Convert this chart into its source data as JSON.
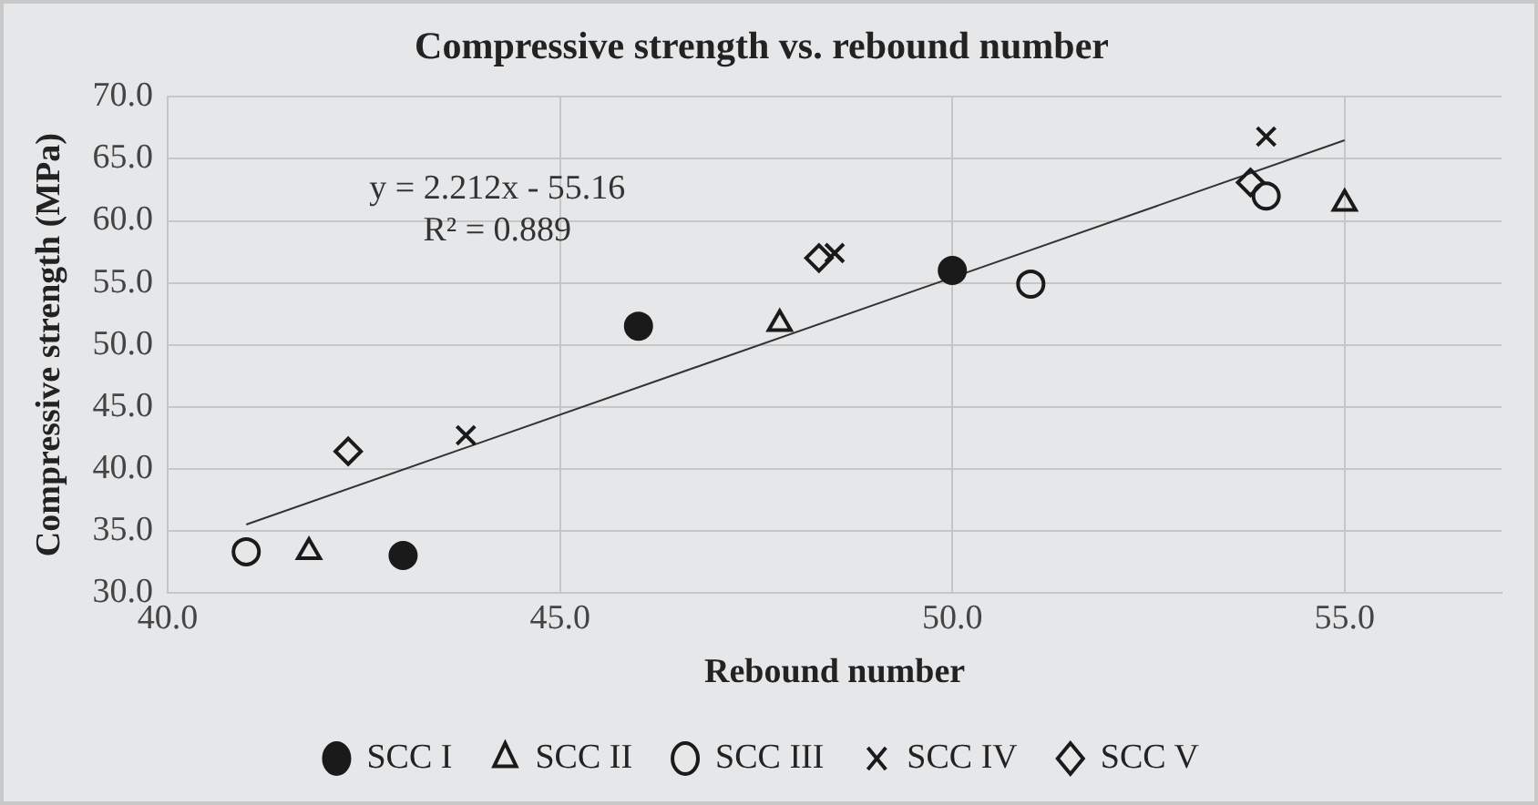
{
  "chart_data": {
    "type": "scatter",
    "title": "Compressive strength vs. rebound number",
    "xlabel": "Rebound number",
    "ylabel": "Compressive strength (MPa)",
    "xlim": [
      40,
      57
    ],
    "xticks": [
      {
        "value": 40,
        "label": "40.0"
      },
      {
        "value": 45,
        "label": "45.0"
      },
      {
        "value": 50,
        "label": "50.0"
      },
      {
        "value": 55,
        "label": "55.0"
      }
    ],
    "ylim": [
      30,
      70
    ],
    "yticks": [
      {
        "value": 30,
        "label": "30.0"
      },
      {
        "value": 35,
        "label": "35.0"
      },
      {
        "value": 40,
        "label": "40.0"
      },
      {
        "value": 45,
        "label": "45.0"
      },
      {
        "value": 50,
        "label": "50.0"
      },
      {
        "value": 55,
        "label": "55.0"
      },
      {
        "value": 60,
        "label": "60.0"
      },
      {
        "value": 65,
        "label": "65.0"
      },
      {
        "value": 70,
        "label": "70.0"
      }
    ],
    "grid": true,
    "legend": "bottom",
    "annotations": [
      "y = 2.212x - 55.16",
      "R² = 0.889"
    ],
    "series": [
      {
        "name": "SCC I",
        "color": "#1a1a1a",
        "marker": "circle",
        "x": [
          43.0,
          46.0,
          50.0
        ],
        "values": [
          33.0,
          51.5,
          56.0
        ]
      },
      {
        "name": "SCC II",
        "color": "#1a1a1a",
        "marker": "triangle",
        "x": [
          41.8,
          47.8,
          55.0
        ],
        "values": [
          33.3,
          51.7,
          61.4
        ]
      },
      {
        "name": "SCC III",
        "color": "#1a1a1a",
        "marker": "circle",
        "x": [
          41.0,
          51.0,
          54.0
        ],
        "values": [
          33.3,
          54.9,
          62.0
        ]
      },
      {
        "name": "SCC IV",
        "color": "#1a1a1a",
        "marker": "cross",
        "x": [
          43.8,
          48.5,
          54.0
        ],
        "values": [
          42.7,
          57.4,
          66.8
        ]
      },
      {
        "name": "SCC V",
        "color": "#1a1a1a",
        "marker": "diamond",
        "x": [
          42.3,
          48.3,
          53.8
        ],
        "values": [
          41.4,
          57.0,
          63.1
        ]
      },
      {
        "type": "line",
        "color": "#333333",
        "marker": "none",
        "x": [
          41.0,
          55.0
        ],
        "values": [
          35.5,
          66.5
        ]
      }
    ]
  }
}
